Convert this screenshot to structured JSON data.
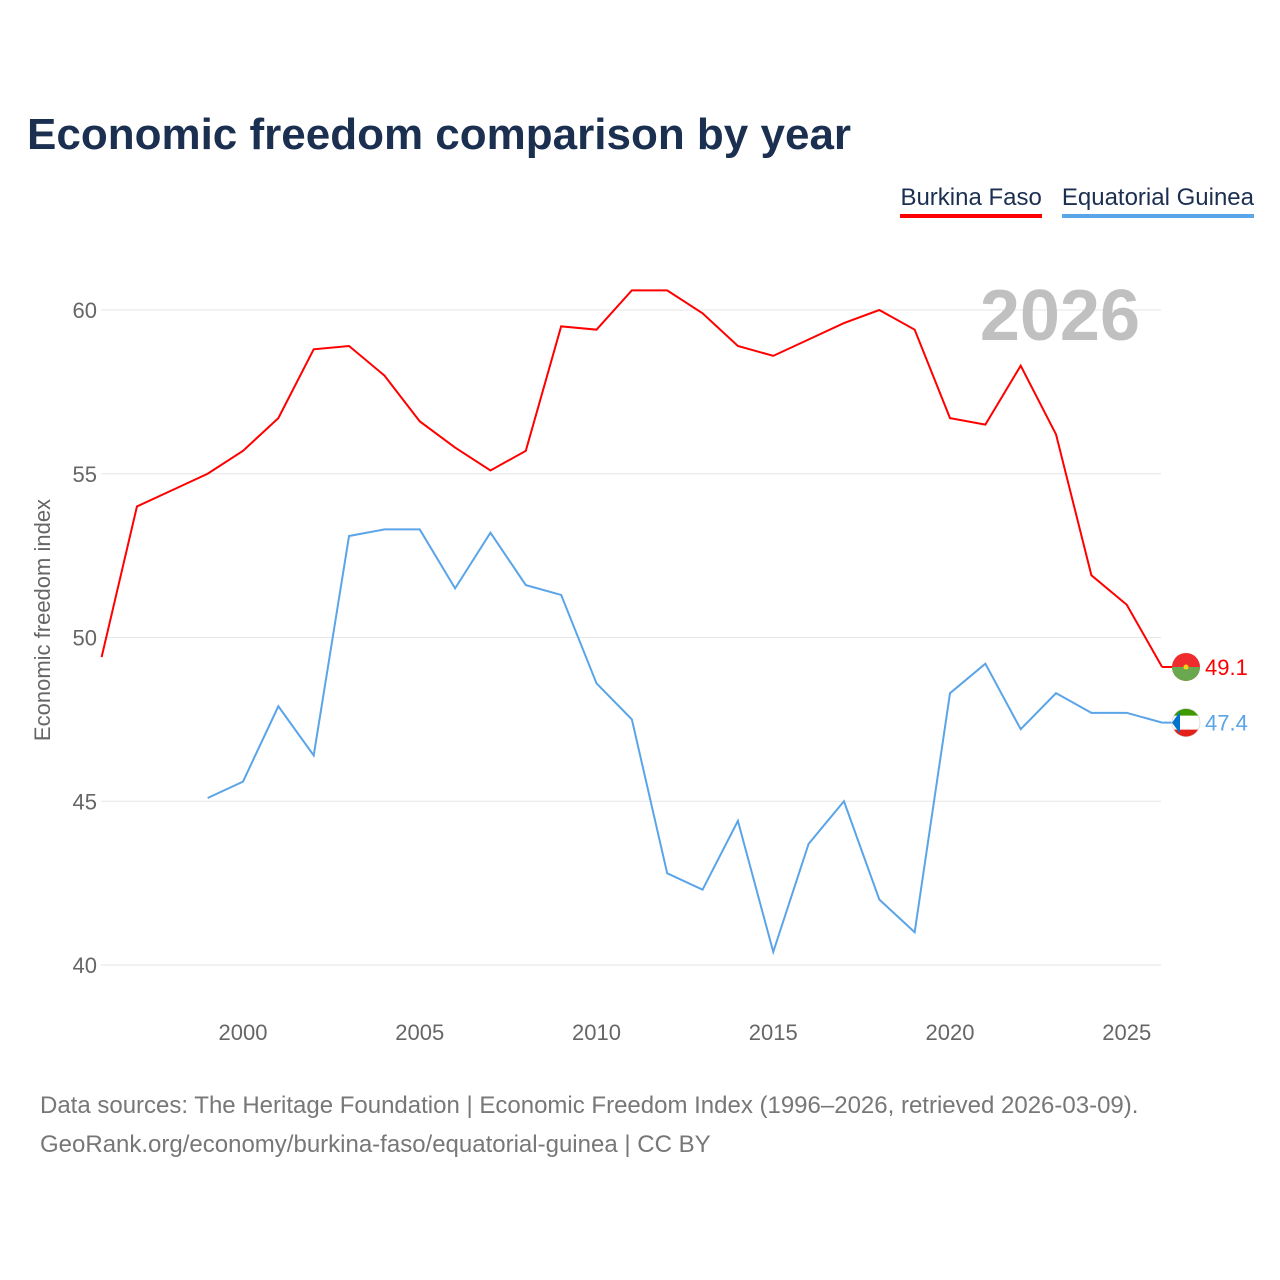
{
  "title": "Economic freedom comparison by year",
  "footer": {
    "line1": "Data sources: The Heritage Foundation | Economic Freedom Index (1996–2026, retrieved 2026-03-09).",
    "line2": "GeoRank.org/economy/burkina-faso/equatorial-guinea | CC BY"
  },
  "chart_data": {
    "type": "line",
    "title": "Economic freedom comparison by year",
    "ylabel": "Economic freedom index",
    "xlabel": "",
    "year_label": "2026",
    "ylim": [
      40,
      61
    ],
    "xlim": [
      1996,
      2026
    ],
    "yticks": [
      "40",
      "45",
      "50",
      "55",
      "60"
    ],
    "xticks": [
      "2000",
      "2005",
      "2010",
      "2015",
      "2020",
      "2025"
    ],
    "legend_placement": "top-right",
    "series": [
      {
        "name": "Burkina Faso",
        "color": "#ff0000",
        "end_label": "49.1",
        "x": [
          1996,
          1997,
          1998,
          1999,
          2000,
          2001,
          2002,
          2003,
          2004,
          2005,
          2006,
          2007,
          2008,
          2009,
          2010,
          2011,
          2012,
          2013,
          2014,
          2015,
          2016,
          2017,
          2018,
          2019,
          2020,
          2021,
          2022,
          2023,
          2024,
          2025,
          2026
        ],
        "values": [
          49.4,
          54.0,
          54.5,
          55.0,
          55.7,
          56.7,
          58.8,
          58.9,
          58.0,
          56.6,
          55.8,
          55.1,
          55.7,
          59.5,
          59.4,
          60.6,
          60.6,
          59.9,
          58.9,
          58.6,
          59.1,
          59.6,
          60.0,
          59.4,
          56.7,
          56.5,
          58.3,
          56.2,
          51.9,
          51.0,
          49.1
        ]
      },
      {
        "name": "Equatorial Guinea",
        "color": "#5aa4e8",
        "end_label": "47.4",
        "x": [
          1999,
          2000,
          2001,
          2002,
          2003,
          2004,
          2005,
          2006,
          2007,
          2008,
          2009,
          2010,
          2011,
          2012,
          2013,
          2014,
          2015,
          2016,
          2017,
          2018,
          2019,
          2020,
          2021,
          2022,
          2023,
          2024,
          2025,
          2026
        ],
        "values": [
          45.1,
          45.6,
          47.9,
          46.4,
          53.1,
          53.3,
          53.3,
          51.5,
          53.2,
          51.6,
          51.3,
          48.6,
          47.5,
          42.8,
          42.3,
          44.4,
          40.4,
          43.7,
          45.0,
          42.0,
          41.0,
          48.3,
          49.2,
          47.2,
          48.3,
          47.7,
          47.7,
          47.4
        ]
      }
    ]
  }
}
